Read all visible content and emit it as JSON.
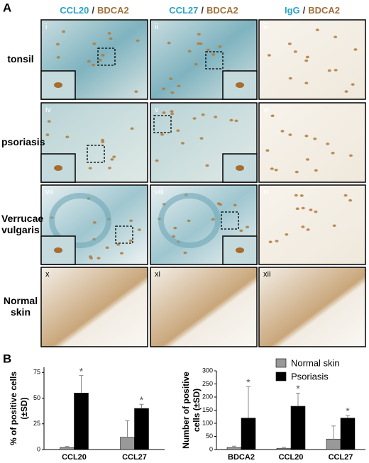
{
  "panel_a": {
    "label": "A",
    "columns": [
      {
        "marker": "CCL20",
        "sep": "/",
        "stain": "BDCA2"
      },
      {
        "marker": "CCL27",
        "sep": "/",
        "stain": "BDCA2"
      },
      {
        "marker": "IgG",
        "sep": "/",
        "stain": "BDCA2"
      }
    ],
    "rows": [
      "tonsil",
      "psoriasis",
      "Verrucae vulgaris",
      "Normal skin"
    ],
    "numerals": [
      "i",
      "ii",
      "iii",
      "iv",
      "v",
      "vi",
      "vii",
      "viii",
      "ix",
      "x",
      "xi",
      "xii"
    ]
  },
  "panel_b_label": "B",
  "chart_data": [
    {
      "type": "bar",
      "ylabel": [
        "% of positive cells",
        "(±SD)"
      ],
      "categories": [
        "CCL20",
        "CCL27"
      ],
      "ylim": [
        0,
        80
      ],
      "yticks": [
        0,
        25,
        50,
        75
      ],
      "series": [
        {
          "name": "Normal skin",
          "color": "#999999",
          "values": [
            2,
            12
          ],
          "errors": [
            1,
            16
          ]
        },
        {
          "name": "Psoriasis",
          "color": "#000000",
          "values": [
            55,
            40
          ],
          "errors": [
            17,
            4
          ]
        }
      ],
      "annotations": [
        "*",
        "*"
      ]
    },
    {
      "type": "bar",
      "ylabel": [
        "Number of positive",
        "cells (±SD)"
      ],
      "categories": [
        "BDCA2",
        "CCL20",
        "CCL27"
      ],
      "ylim": [
        0,
        300
      ],
      "yticks": [
        0,
        50,
        100,
        150,
        200,
        250,
        300
      ],
      "series": [
        {
          "color": "#999999",
          "values": [
            8,
            5,
            40
          ],
          "errors": [
            5,
            3,
            50
          ]
        },
        {
          "color": "#000000",
          "values": [
            120,
            165,
            120
          ],
          "errors": [
            120,
            50,
            10
          ]
        }
      ],
      "annotations": [
        "*",
        "*",
        "*"
      ]
    }
  ]
}
